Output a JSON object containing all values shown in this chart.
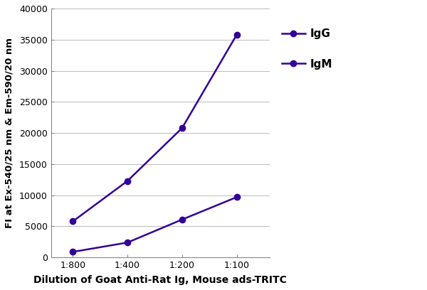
{
  "x_labels": [
    "1:800",
    "1:400",
    "1:200",
    "1:100"
  ],
  "x_positions": [
    1,
    2,
    3,
    4
  ],
  "IgG_values": [
    5800,
    12300,
    20800,
    35800
  ],
  "IgM_values": [
    900,
    2400,
    6100,
    9700
  ],
  "line_color": "#330099",
  "marker_IgG": "o",
  "marker_IgM": "o",
  "marker_size": 6,
  "linewidth": 1.8,
  "ylabel": "FI at Ex-540/25 nm & Em-590/20 nm",
  "xlabel": "Dilution of Goat Anti-Rat Ig, Mouse ads-TRITC",
  "ylim": [
    0,
    40000
  ],
  "yticks": [
    0,
    5000,
    10000,
    15000,
    20000,
    25000,
    30000,
    35000,
    40000
  ],
  "legend_labels": [
    "IgG",
    "IgM"
  ],
  "background_color": "#ffffff",
  "grid_color": "#bbbbbb",
  "xlabel_fontsize": 10,
  "ylabel_fontsize": 9.5,
  "tick_fontsize": 9,
  "legend_fontsize": 11,
  "xlim": [
    0.6,
    4.6
  ]
}
